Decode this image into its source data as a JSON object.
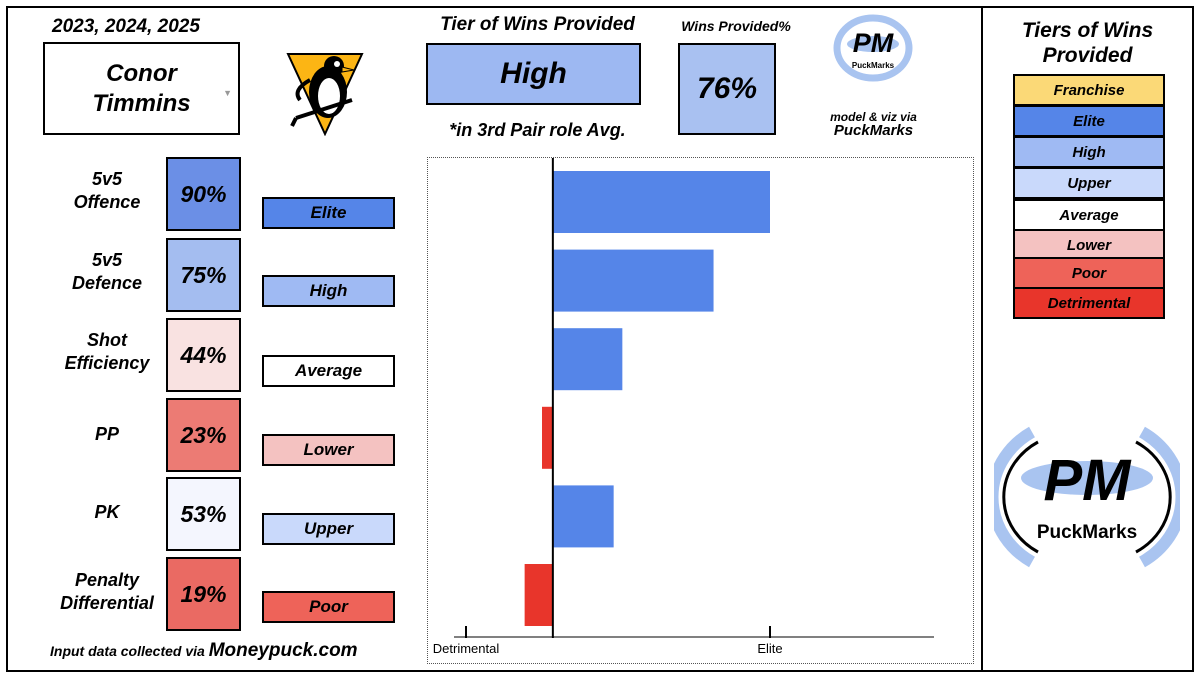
{
  "header": {
    "years": "2023, 2024, 2025",
    "player_name": "Conor Timmins",
    "team_logo": "penguins-logo-icon"
  },
  "tier": {
    "title": "Tier of Wins Provided",
    "value": "High",
    "note": "*in 3rd Pair role Avg.",
    "color": "#9db8f2"
  },
  "wins_provided": {
    "title": "Wins Provided%",
    "value": "76%",
    "color": "#a9c1f1"
  },
  "brand": {
    "logo_text": "PM",
    "logo_subtext": "PuckMarks",
    "credit_line": "model & viz via",
    "credit_name": "PuckMarks"
  },
  "metrics": [
    {
      "label_lines": [
        "5v5",
        "Offence"
      ],
      "pct": "90%",
      "pct_color": "#6b8fe6",
      "tier": "Elite",
      "tier_color": "#5585e8"
    },
    {
      "label_lines": [
        "5v5",
        "Defence"
      ],
      "pct": "75%",
      "pct_color": "#a4bdf0",
      "tier": "High",
      "tier_color": "#9fbaf3"
    },
    {
      "label_lines": [
        "Shot",
        "Efficiency"
      ],
      "pct": "44%",
      "pct_color": "#f9e2e1",
      "tier": "Average",
      "tier_color": "#ffffff"
    },
    {
      "label_lines": [
        "PP"
      ],
      "pct": "23%",
      "pct_color": "#ec7b74",
      "tier": "Lower",
      "tier_color": "#f4c2c1"
    },
    {
      "label_lines": [
        "PK"
      ],
      "pct": "53%",
      "pct_color": "#f4f6fe",
      "tier": "Upper",
      "tier_color": "#c9d9fb"
    },
    {
      "label_lines": [
        "Penalty",
        "Differential"
      ],
      "pct": "19%",
      "pct_color": "#ea6a63",
      "tier": "Poor",
      "tier_color": "#ee6359"
    }
  ],
  "footer": {
    "prefix": "Input data collected via ",
    "site": "Moneypuck.com"
  },
  "legend": {
    "title_lines": [
      "Tiers of Wins",
      "Provided"
    ],
    "items": [
      {
        "label": "Franchise",
        "color": "#fbd977"
      },
      {
        "label": "Elite",
        "color": "#5585e8"
      },
      {
        "label": "High",
        "color": "#9fbaf3"
      },
      {
        "label": "Upper",
        "color": "#c9d9fb"
      },
      {
        "label": "Average",
        "color": "#ffffff"
      },
      {
        "label": "Lower",
        "color": "#f4c2c1"
      },
      {
        "label": "Poor",
        "color": "#ee6359"
      },
      {
        "label": "Detrimental",
        "color": "#e8352b"
      }
    ]
  },
  "chart_data": {
    "type": "bar",
    "orientation": "horizontal",
    "categories": [
      "5v5 Offence",
      "5v5 Defence",
      "Shot Efficiency",
      "PP",
      "PK",
      "Penalty Differential"
    ],
    "values": [
      1.0,
      0.74,
      0.32,
      -0.05,
      0.28,
      -0.13
    ],
    "colors": [
      "#5585e8",
      "#5585e8",
      "#5585e8",
      "#e8352b",
      "#5585e8",
      "#e8352b"
    ],
    "xlim": [
      -0.4,
      1.35
    ],
    "tick_values": [
      -0.4,
      1.0
    ],
    "tick_labels": [
      "Detrimental",
      "Elite"
    ],
    "zero_line": true,
    "grid": false
  }
}
